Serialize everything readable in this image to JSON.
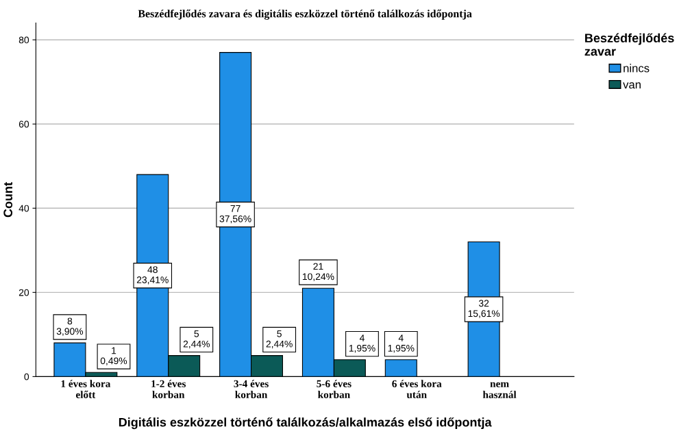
{
  "chart_data": {
    "type": "bar",
    "title": "Beszédfejlődés zavara és digitális eszközzel történő találkozás időpontja",
    "xlabel": "Digitális eszközzel történő találkozás/alkalmazás első időpontja",
    "ylabel": "Count",
    "categories": [
      "1 éves kora\nelőtt",
      "1-2 éves\nkorban",
      "3-4 éves\nkorban",
      "5-6 éves\nkorban",
      "6 éves kora\nután",
      "nem\nhasznál"
    ],
    "series": [
      {
        "name": "nincs",
        "color": "#1f8fe6",
        "values": [
          8,
          48,
          77,
          21,
          4,
          32
        ],
        "value_labels": [
          "8\n3,90%",
          "48\n23,41%",
          "77\n37,56%",
          "21\n10,24%",
          "4\n1,95%",
          "32\n15,61%"
        ]
      },
      {
        "name": "van",
        "color": "#0b5a57",
        "values": [
          1,
          5,
          5,
          4,
          null,
          null
        ],
        "value_labels": [
          "1\n0,49%",
          "5\n2,44%",
          "5\n2,44%",
          "4\n1,95%",
          null,
          null
        ]
      }
    ],
    "legend_title": "Beszédfejlődés\nzavar",
    "legend": "right",
    "ylim": [
      0,
      84
    ],
    "yticks": [
      0,
      20,
      40,
      60,
      80
    ],
    "grid": "y"
  }
}
